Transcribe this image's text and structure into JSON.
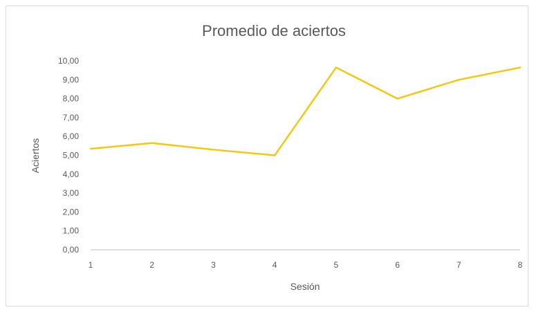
{
  "chart_data": {
    "type": "line",
    "title": "Promedio de aciertos",
    "xlabel": "Sesión",
    "ylabel": "Aciertos",
    "x": [
      "1",
      "2",
      "3",
      "4",
      "5",
      "6",
      "7",
      "8"
    ],
    "y_ticks": [
      "0,00",
      "1,00",
      "2,00",
      "3,00",
      "4,00",
      "5,00",
      "6,00",
      "7,00",
      "8,00",
      "9,00",
      "10,00"
    ],
    "ylim": [
      0,
      10
    ],
    "series": [
      {
        "values": [
          5.35,
          5.65,
          5.3,
          5.0,
          9.65,
          8.0,
          9.0,
          9.65
        ],
        "color": "#f2c811"
      }
    ],
    "grid": false,
    "legend": "none"
  }
}
